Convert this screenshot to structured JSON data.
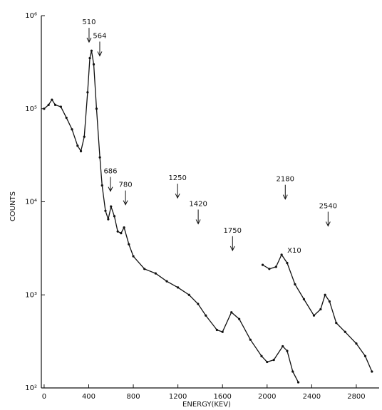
{
  "chart_data": {
    "type": "line",
    "log_y": true,
    "color": "#111111",
    "xlabel": "ENERGY(KEV)",
    "ylabel": "COUNTS",
    "xlim": [
      -25,
      3005
    ],
    "ylim": [
      100,
      1000000
    ],
    "xticks": [
      0,
      400,
      800,
      1200,
      1600,
      2000,
      2400,
      2800
    ],
    "yticks": [
      {
        "value": 100,
        "label": "10²"
      },
      {
        "value": 1000,
        "label": "10³"
      },
      {
        "value": 10000,
        "label": "10⁴"
      },
      {
        "value": 100000,
        "label": "10⁵"
      },
      {
        "value": 1000000,
        "label": "10⁶"
      }
    ],
    "series": [
      {
        "x": [
          0,
          40,
          70,
          100,
          150,
          200,
          250,
          300,
          330,
          360,
          390,
          410,
          425,
          445,
          470,
          500,
          520,
          550,
          575,
          600,
          630,
          660,
          690,
          717,
          760,
          800,
          900,
          1000,
          1100,
          1200,
          1300,
          1380,
          1450,
          1550,
          1600,
          1680,
          1750,
          1850,
          1950,
          2000,
          2060,
          2140,
          2180,
          2230,
          2280
        ],
        "values": [
          100000,
          110000,
          125000,
          110000,
          105000,
          80000,
          60000,
          40000,
          35000,
          50000,
          150000,
          350000,
          420000,
          300000,
          100000,
          30000,
          15000,
          8000,
          6500,
          8900,
          7000,
          4800,
          4600,
          5300,
          3500,
          2600,
          1900,
          1700,
          1400,
          1200,
          1000,
          800,
          600,
          420,
          400,
          650,
          550,
          330,
          220,
          190,
          200,
          280,
          250,
          150,
          115
        ]
      },
      {
        "name": "X10",
        "x": [
          1960,
          2020,
          2080,
          2130,
          2180,
          2250,
          2330,
          2420,
          2480,
          2520,
          2560,
          2620,
          2700,
          2800,
          2880,
          2940
        ],
        "values": [
          2100,
          1900,
          2000,
          2700,
          2200,
          1300,
          900,
          600,
          700,
          1000,
          850,
          500,
          400,
          300,
          220,
          150
        ]
      }
    ],
    "annotations": [
      {
        "text": "510",
        "x": 403,
        "y": 520000
      },
      {
        "text": "564",
        "x": 499,
        "y": 370000
      },
      {
        "text": "686",
        "x": 595,
        "y": 13000
      },
      {
        "text": "780",
        "x": 730,
        "y": 9300
      },
      {
        "text": "1250",
        "x": 1197,
        "y": 11000
      },
      {
        "text": "1420",
        "x": 1382,
        "y": 5800
      },
      {
        "text": "1750",
        "x": 1690,
        "y": 3000
      },
      {
        "text": "2180",
        "x": 2163,
        "y": 10700
      },
      {
        "text": "2540",
        "x": 2547,
        "y": 5500
      }
    ]
  }
}
